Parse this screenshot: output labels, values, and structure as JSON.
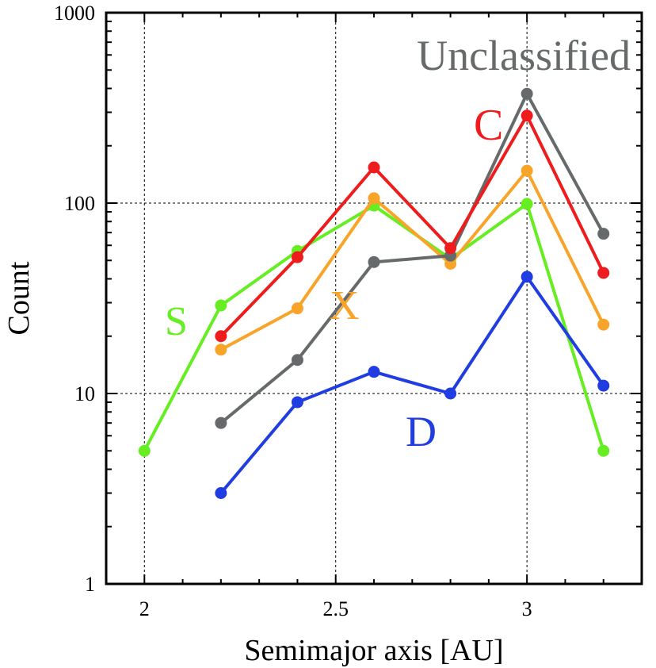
{
  "chart_data": {
    "type": "line",
    "xlabel": "Semimajor axis [AU]",
    "ylabel": "Count",
    "xlim": [
      1.9,
      3.3
    ],
    "ylim": [
      1,
      1000
    ],
    "yscale": "log",
    "grid": true,
    "x_ticks": [
      2,
      2.5,
      3
    ],
    "x_tick_labels": [
      "2",
      "2.5",
      "3"
    ],
    "y_ticks": [
      1,
      10,
      100,
      1000
    ],
    "y_tick_labels": [
      "1",
      "10",
      "100",
      "1000"
    ],
    "series": [
      {
        "name": "S",
        "color": "#66ee22",
        "x": [
          2.0,
          2.2,
          2.4,
          2.6,
          2.8,
          3.0,
          3.2
        ],
        "values": [
          5,
          29,
          56,
          97,
          51,
          99,
          5
        ]
      },
      {
        "name": "X",
        "color": "#f8a428",
        "x": [
          2.2,
          2.4,
          2.6,
          2.8,
          3.0,
          3.2
        ],
        "values": [
          17,
          28,
          106,
          48,
          148,
          23
        ]
      },
      {
        "name": "Unclassified",
        "color": "#666a6a",
        "x": [
          2.2,
          2.4,
          2.6,
          2.8,
          3.0,
          3.2
        ],
        "values": [
          7,
          15,
          49,
          53,
          375,
          69
        ]
      },
      {
        "name": "C",
        "color": "#ee1c1c",
        "x": [
          2.2,
          2.4,
          2.6,
          2.8,
          3.0,
          3.2
        ],
        "values": [
          20,
          52,
          154,
          58,
          288,
          43
        ]
      },
      {
        "name": "D",
        "color": "#1f3de0",
        "x": [
          2.2,
          2.4,
          2.6,
          2.8,
          3.0,
          3.2
        ],
        "values": [
          3,
          9,
          13,
          10,
          41,
          11
        ]
      }
    ]
  }
}
